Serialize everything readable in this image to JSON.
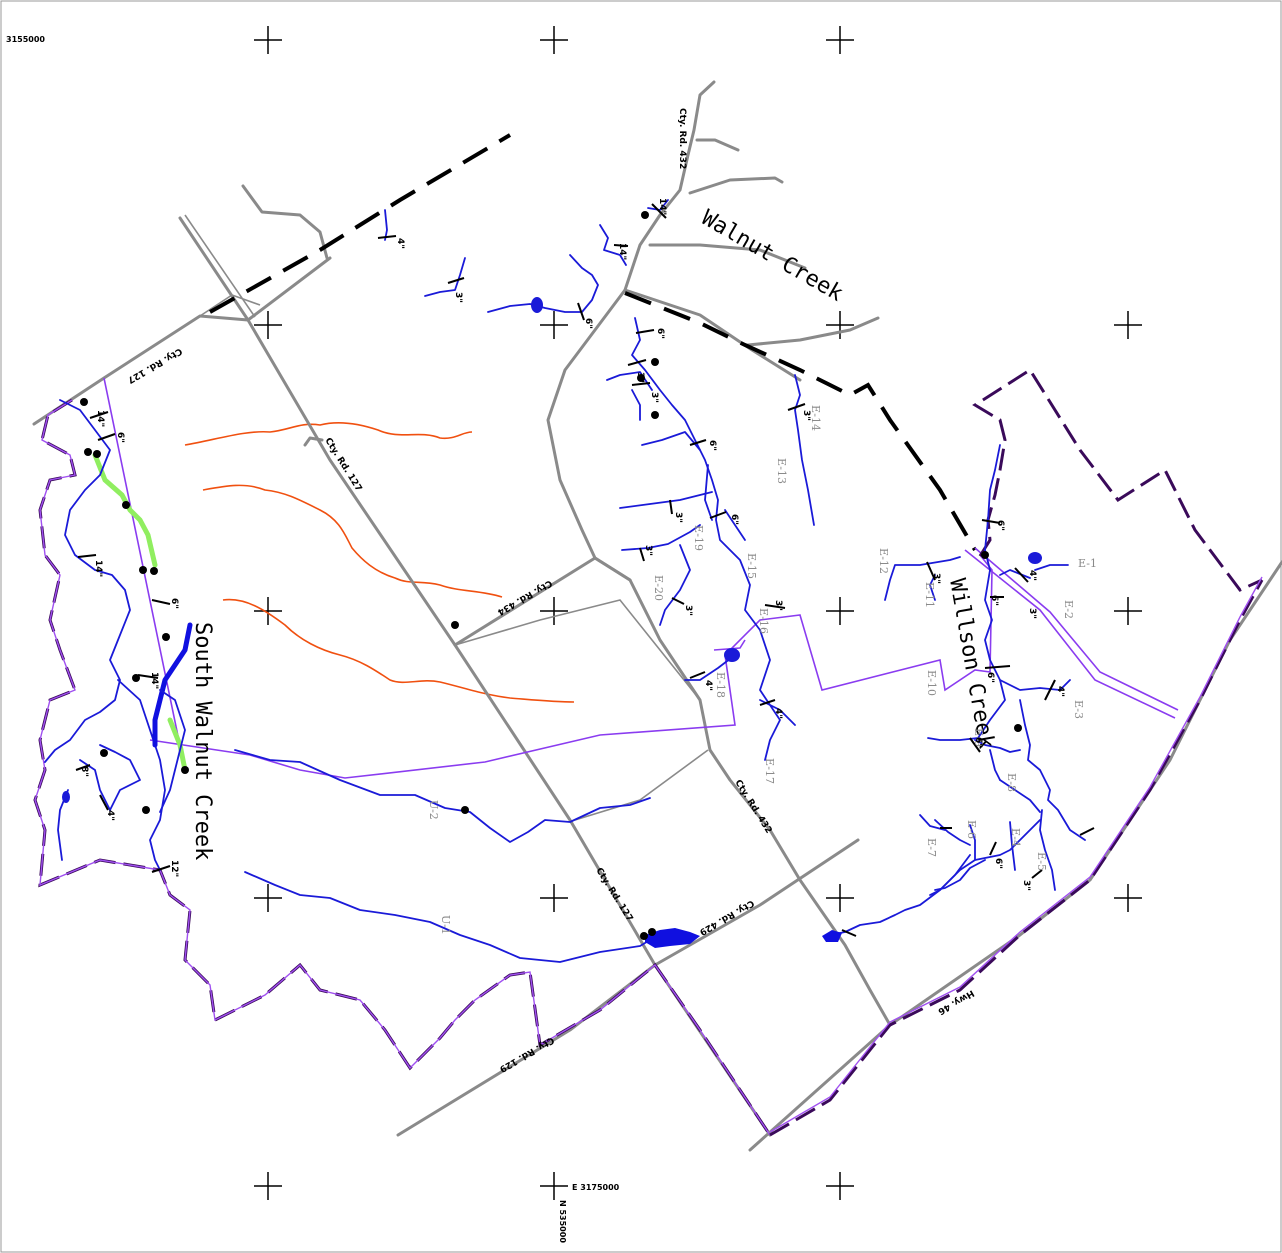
{
  "map": {
    "corner_coord": "3155000",
    "easting_label": "E 3175000",
    "northing_label": "N 535000",
    "creeks": {
      "walnut": "Walnut Creek",
      "south_walnut": "South Walnut Creek",
      "willson": "Willson Creek"
    },
    "roads": {
      "r127_north": "Cty. Rd. 127",
      "r127_center": "Cty. Rd. 127",
      "r127_south": "Cty. Rd. 127",
      "r432_north": "Cty. Rd. 432",
      "r432_south": "Cty. Rd. 432",
      "r434": "Cty. Rd. 434",
      "r429": "Cty. Rd. 429",
      "r129": "Cty. Rd. 129",
      "hwy46": "Hwy. 46"
    },
    "reach_labels": {
      "E1": "E-1",
      "E2": "E-2",
      "E3": "E-3",
      "E4": "E-4",
      "E5": "E-5",
      "E6": "E-6",
      "E7": "E-7",
      "E8": "E-8",
      "E9": "E-9",
      "E10": "E-10",
      "E11": "E-11",
      "E12": "E-12",
      "E13": "E-13",
      "E14": "E-14",
      "E15": "E-15",
      "E16": "E-16",
      "E17": "E-17",
      "E18": "E-18",
      "E19": "E-19",
      "E20": "E-20",
      "U1": "U-1",
      "U2": "U-2"
    },
    "pipe_sizes": {
      "s14a": "14\"",
      "s6a": "6\"",
      "s14b": "14\"",
      "s6b": "6\"",
      "s14c": "14\"",
      "s8a": "8\"",
      "s4a": "4\"",
      "s12a": "12\"",
      "s4b": "4\"",
      "s3a": "3\"",
      "s6c": "6\"",
      "s14d": "14\"",
      "s14e": "14\"",
      "s6d": "6\"",
      "s3b": "3\"",
      "s3c": "3\"",
      "s6e": "6\"",
      "s3d": "3\"",
      "s6f": "6\"",
      "s3e": "3\"",
      "s3f": "3\"",
      "s3g": "3\"",
      "s4c": "4\"",
      "s4d": "4\"",
      "s3h": "3\"",
      "s6g": "6\"",
      "s3i": "3\"",
      "s4e": "4\"",
      "s6h": "6\"",
      "s3j": "3\"",
      "s6i": "6\"",
      "s4f": "4\"",
      "s6j": "6\"",
      "s6k": "6\"",
      "s3k": "3\""
    },
    "colors": {
      "stream": "#1a1ad8",
      "road": "#8a8a8a",
      "contour": "#f05010",
      "boundary": "#3a0a5a",
      "line": "#8a3cf0",
      "trail": "#90ee60"
    }
  }
}
